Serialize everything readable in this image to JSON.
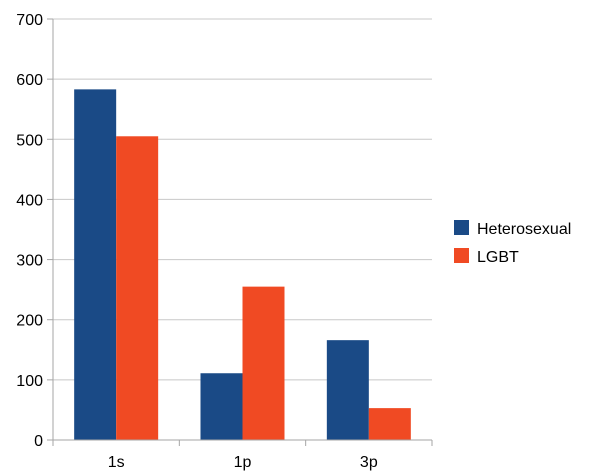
{
  "chart_data": {
    "type": "bar",
    "title": "",
    "xlabel": "",
    "ylabel": "",
    "categories": [
      "1s",
      "1p",
      "3p"
    ],
    "series": [
      {
        "name": "Heterosexual",
        "color": "#1a4a86",
        "values": [
          583,
          111,
          166
        ]
      },
      {
        "name": "LGBT",
        "color": "#f04a23",
        "values": [
          505,
          255,
          53
        ]
      }
    ],
    "ylim": [
      0,
      700
    ],
    "yticks": [
      "0",
      "100",
      "200",
      "300",
      "400",
      "500",
      "600",
      "700"
    ],
    "grid": true,
    "legend": "right"
  }
}
